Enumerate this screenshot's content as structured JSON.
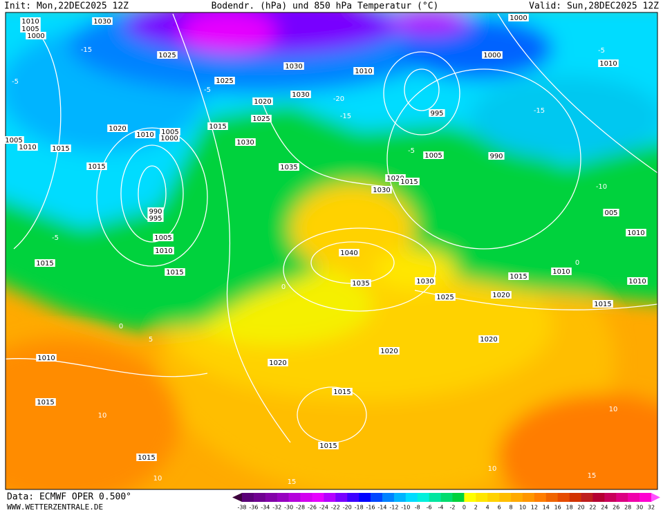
{
  "header": {
    "init": "Init: Mon,22DEC2025 12Z",
    "title": "Bodendr. (hPa) und 850 hPa Temperatur (°C)",
    "valid": "Valid: Sun,28DEC2025 12Z"
  },
  "footer": {
    "source": "Data: ECMWF OPER 0.500°",
    "website": "WWW.WETTERZENTRALE.DE"
  },
  "isobar_labels": [
    "1030",
    "1025",
    "1025",
    "1030",
    "1030",
    "1010",
    "1000",
    "1000",
    "1010",
    "1020",
    "1025",
    "1015",
    "1020",
    "1010",
    "1005",
    "1000",
    "1030",
    "1005",
    "1010",
    "1015",
    "1015",
    "1035",
    "995",
    "1005",
    "990",
    "1020",
    "1015",
    "1030",
    "990",
    "995",
    "1005",
    "1010",
    "1015",
    "1015",
    "1040",
    "1035",
    "1030",
    "1015",
    "1010",
    "1010",
    "1025",
    "1020",
    "1015",
    "1020",
    "1020",
    "1020",
    "1010",
    "1015",
    "1015",
    "1015",
    "1015",
    "005",
    "1010",
    "1010",
    "1005",
    "1000"
  ],
  "temperature_labels": [
    "-15",
    "-5",
    "-5",
    "-15",
    "-20",
    "-15",
    "-5",
    "-10",
    "-5",
    "0",
    "0",
    "5",
    "10",
    "10",
    "10",
    "10",
    "15",
    "15",
    "-5",
    "0"
  ],
  "colorbar": {
    "labels": [
      -38,
      -36,
      -34,
      -32,
      -30,
      -28,
      -26,
      -24,
      -22,
      -20,
      -18,
      -16,
      -14,
      -12,
      -10,
      -8,
      -6,
      -4,
      -2,
      0,
      2,
      4,
      6,
      8,
      10,
      12,
      14,
      16,
      18,
      20,
      22,
      24,
      26,
      28,
      30,
      32
    ],
    "colors": [
      "#3c003c",
      "#5a0078",
      "#6e0090",
      "#8200a8",
      "#9600c0",
      "#b400dc",
      "#d200f0",
      "#e600ff",
      "#b400ff",
      "#7800ff",
      "#3c00ff",
      "#0000ff",
      "#0046ff",
      "#0082ff",
      "#00b4ff",
      "#00dcff",
      "#00f0dc",
      "#00e6a0",
      "#00dc6e",
      "#00d23c",
      "#ffff00",
      "#ffe600",
      "#ffd200",
      "#ffbe00",
      "#ffaa00",
      "#ff9600",
      "#ff7d00",
      "#f06400",
      "#e64b00",
      "#d23200",
      "#be1e1e",
      "#b40032",
      "#c8005a",
      "#dc0082",
      "#f000aa",
      "#ff00d2",
      "#ff50ff"
    ]
  }
}
